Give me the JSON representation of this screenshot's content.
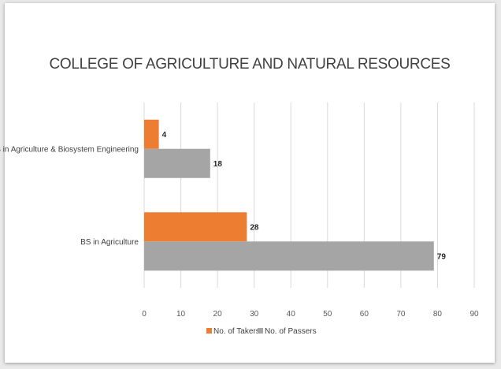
{
  "chart_data": {
    "type": "bar",
    "orientation": "horizontal",
    "title": "COLLEGE OF AGRICULTURE AND NATURAL RESOURCES",
    "categories": [
      "BS in Agriculture & Biosystem Engineering",
      "BS in Agriculture"
    ],
    "series": [
      {
        "name": "No. of Takers",
        "values": [
          4,
          28
        ],
        "color": "#ed7d31"
      },
      {
        "name": "No. of Passers",
        "values": [
          18,
          79
        ],
        "color": "#a5a5a5"
      }
    ],
    "xlim": [
      0,
      90
    ],
    "xticks": [
      0,
      10,
      20,
      30,
      40,
      50,
      60,
      70,
      80,
      90
    ],
    "grid": true,
    "legend": "bottom",
    "data_labels": true
  }
}
